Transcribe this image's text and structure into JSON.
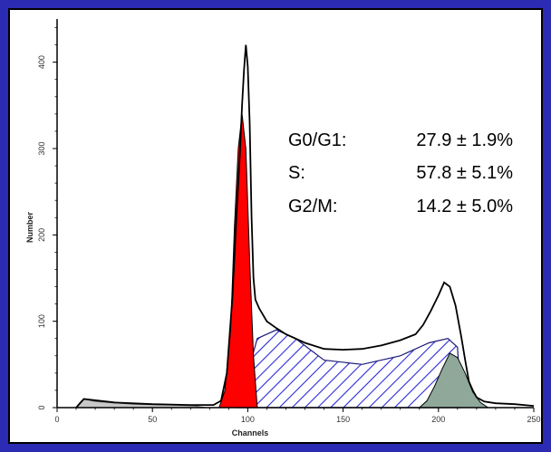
{
  "chart_data": {
    "type": "area",
    "xlabel": "Channels",
    "ylabel": "Number",
    "x_ticks": [
      "0",
      "50",
      "100",
      "150",
      "200",
      "250"
    ],
    "y_ticks": [
      "0",
      "100",
      "200",
      "300",
      "400"
    ],
    "xlim": [
      0,
      250
    ],
    "ylim": [
      0,
      450
    ],
    "legend_placement": "top-right",
    "colors": {
      "g0g1": "#ff0000",
      "s_phase": "#2b2bd8",
      "g2m": "#8fa89a",
      "debris": "#c8c8c8",
      "total": "#000000"
    },
    "series": [
      {
        "name": "G0/G1",
        "x": [
          85,
          88,
          91,
          93,
          95,
          97,
          99,
          101,
          103,
          105
        ],
        "values": [
          0,
          20,
          90,
          210,
          300,
          340,
          300,
          170,
          60,
          0
        ]
      },
      {
        "name": "S",
        "x": [
          95,
          105,
          115,
          125,
          140,
          160,
          180,
          195,
          205,
          210,
          212
        ],
        "values": [
          0,
          80,
          90,
          80,
          55,
          50,
          60,
          75,
          80,
          70,
          0
        ]
      },
      {
        "name": "G2/M",
        "x": [
          190,
          194,
          198,
          202,
          206,
          210,
          214,
          218,
          222,
          226
        ],
        "values": [
          0,
          8,
          25,
          45,
          63,
          58,
          40,
          18,
          6,
          0
        ]
      },
      {
        "x": [
          10,
          12,
          14,
          20,
          40,
          60,
          72,
          78
        ],
        "values": [
          0,
          6,
          10,
          7,
          4,
          3,
          2,
          0
        ]
      },
      {
        "x": [
          10,
          14,
          30,
          50,
          70,
          82,
          86,
          89,
          92,
          94,
          96,
          97,
          98,
          99,
          100,
          101,
          102,
          103,
          104,
          106,
          110,
          115,
          120,
          130,
          140,
          150,
          160,
          170,
          180,
          188,
          192,
          196,
          200,
          203,
          206,
          209,
          212,
          214,
          216,
          218,
          220,
          224,
          230,
          240,
          250
        ],
        "values": [
          0,
          10,
          6,
          4,
          3,
          3,
          8,
          40,
          130,
          220,
          300,
          350,
          390,
          420,
          395,
          330,
          220,
          150,
          125,
          115,
          100,
          92,
          85,
          75,
          68,
          67,
          68,
          72,
          78,
          85,
          96,
          112,
          130,
          145,
          140,
          118,
          82,
          55,
          30,
          20,
          12,
          7,
          5,
          4,
          2
        ]
      }
    ],
    "annotations": [
      {
        "label": "G0/G1:",
        "value": "27.9 ± 1.9%"
      },
      {
        "label": "S:",
        "value": "57.8 ± 5.1%"
      },
      {
        "label": "G2/M:",
        "value": "14.2 ± 5.0%"
      }
    ]
  }
}
